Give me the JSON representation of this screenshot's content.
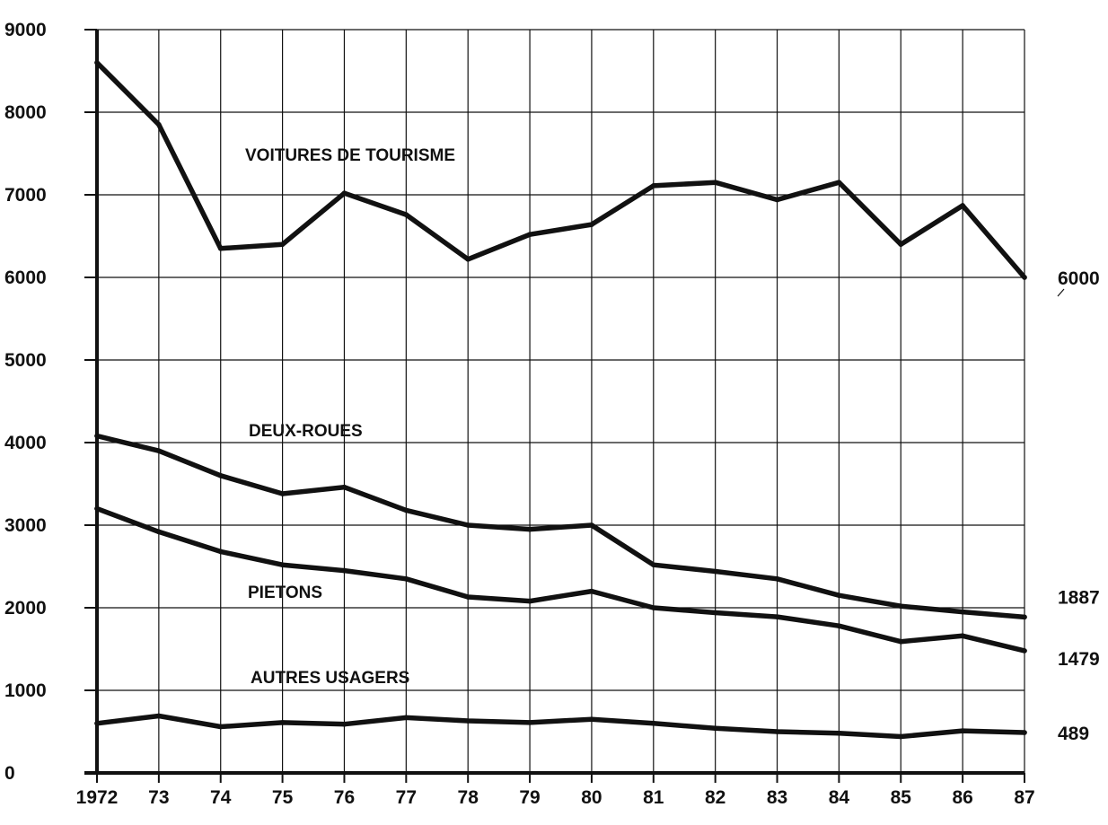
{
  "chart_data": {
    "type": "line",
    "x": [
      "1972",
      "73",
      "74",
      "75",
      "76",
      "77",
      "78",
      "79",
      "80",
      "81",
      "82",
      "83",
      "84",
      "85",
      "86",
      "87"
    ],
    "ylim": [
      0,
      9000
    ],
    "yticks": [
      "0",
      "1000",
      "2000",
      "3000",
      "4000",
      "5000",
      "6000",
      "7000",
      "8000",
      "9000"
    ],
    "grid": true,
    "series": [
      {
        "name": "VOITURES DE TOURISME",
        "values": [
          8600,
          7850,
          6350,
          6400,
          7020,
          6760,
          6220,
          6520,
          6640,
          7110,
          7150,
          6940,
          7150,
          6400,
          6870,
          6000
        ],
        "end_label": "6000"
      },
      {
        "name": "DEUX-ROUES",
        "values": [
          4080,
          3900,
          3600,
          3380,
          3460,
          3180,
          3000,
          2950,
          3000,
          2520,
          2440,
          2350,
          2150,
          2020,
          1950,
          1887
        ],
        "end_label": "1887"
      },
      {
        "name": "PIETONS",
        "values": [
          3200,
          2920,
          2680,
          2520,
          2450,
          2350,
          2130,
          2080,
          2200,
          2000,
          1940,
          1890,
          1780,
          1590,
          1660,
          1479
        ],
        "end_label": "1479"
      },
      {
        "name": "AUTRES USAGERS",
        "values": [
          600,
          690,
          560,
          610,
          590,
          670,
          630,
          610,
          650,
          600,
          540,
          500,
          480,
          440,
          510,
          489
        ],
        "end_label": "489"
      }
    ],
    "line_color": "#111111",
    "grid_color": "#111111"
  }
}
